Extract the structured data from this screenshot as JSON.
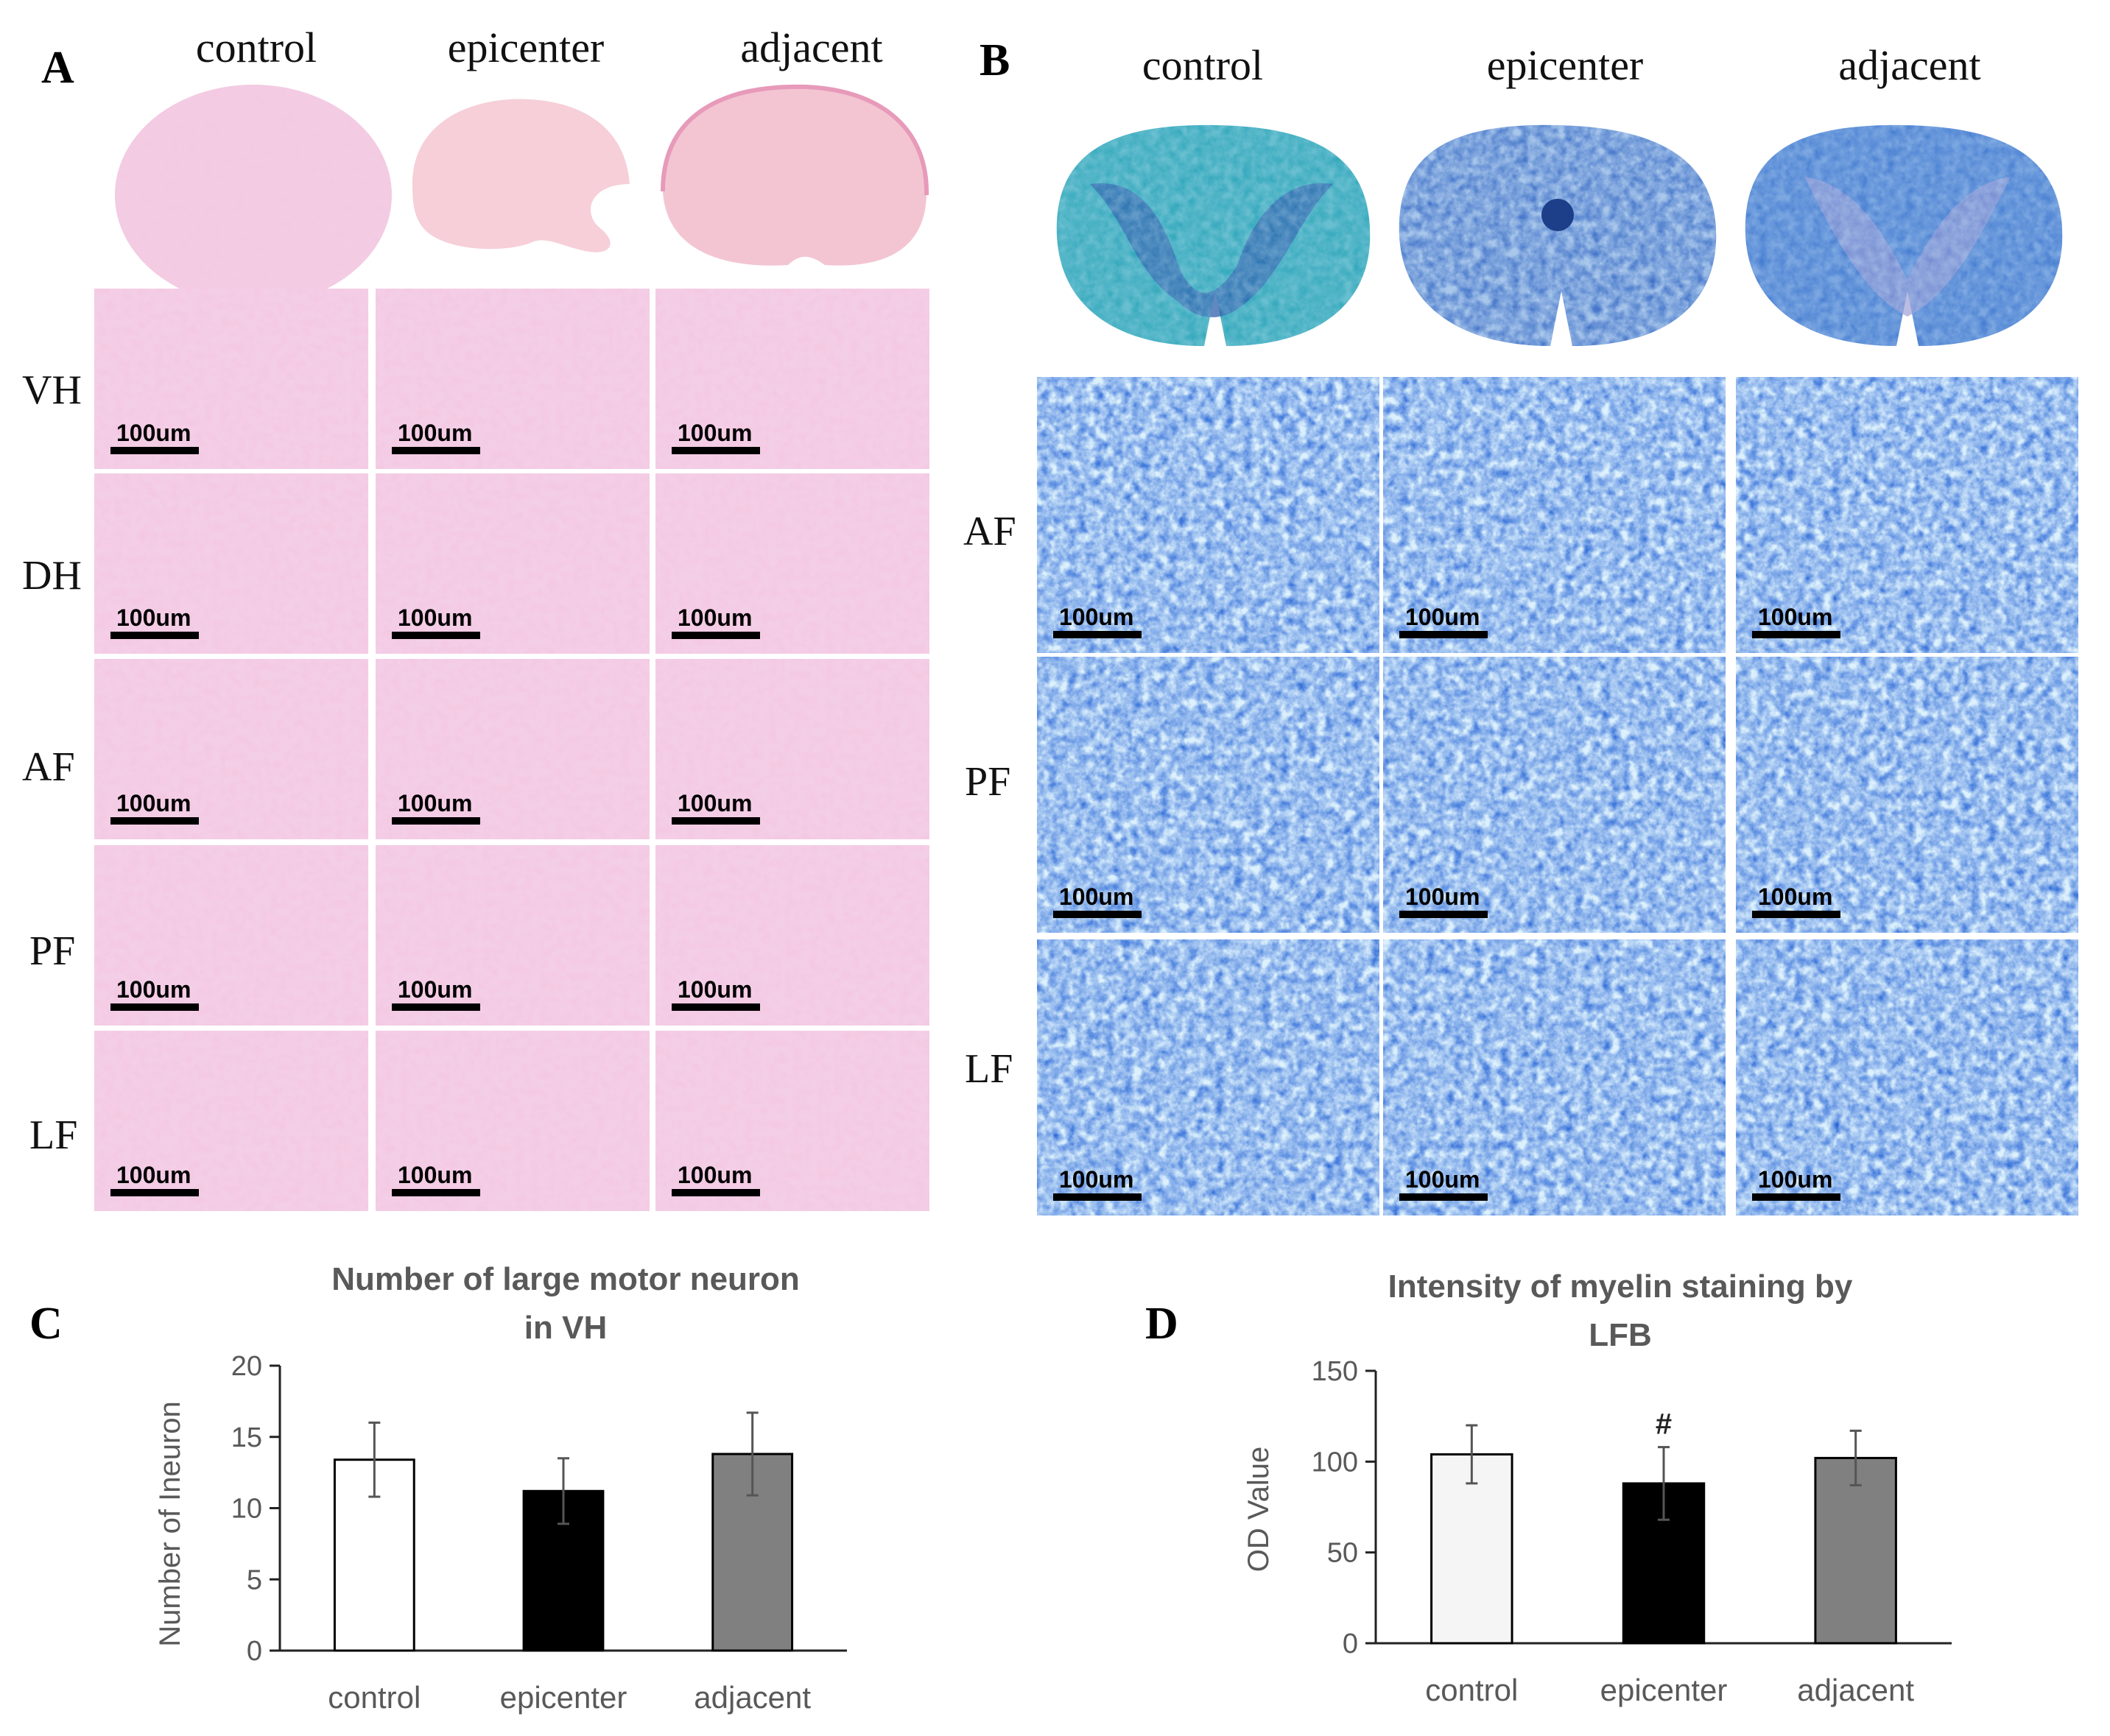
{
  "panel_a": {
    "letter": "A",
    "columns": [
      "control",
      "epicenter",
      "adjacent"
    ],
    "rows": [
      "VH",
      "DH",
      "AF",
      "PF",
      "LF"
    ],
    "scale_label": "100um",
    "stain_color": "#e9a5cc"
  },
  "panel_b": {
    "letter": "B",
    "columns": [
      "control",
      "epicenter",
      "adjacent"
    ],
    "rows": [
      "AF",
      "PF",
      "LF"
    ],
    "scale_label": "100um",
    "stain_color": "#2f6fd0"
  },
  "chart_data": [
    {
      "panel": "C",
      "type": "bar",
      "title_lines": [
        "Number of large motor neuron",
        "in VH"
      ],
      "xlabel": "",
      "ylabel": "Number of Ineuron",
      "categories": [
        "control",
        "epicenter",
        "adjacent"
      ],
      "values": [
        13.4,
        11.2,
        13.8
      ],
      "errors": [
        2.6,
        2.3,
        2.9
      ],
      "bar_colors": [
        "#ffffff",
        "#000000",
        "#808080"
      ],
      "ylim": [
        0,
        20
      ],
      "yticks": [
        0,
        5,
        10,
        15,
        20
      ],
      "annotations": []
    },
    {
      "panel": "D",
      "type": "bar",
      "title_lines": [
        "Intensity of myelin staining by",
        "LFB"
      ],
      "xlabel": "",
      "ylabel": "OD Value",
      "categories": [
        "control",
        "epicenter",
        "adjacent"
      ],
      "values": [
        104,
        88,
        102
      ],
      "errors": [
        16,
        20,
        15
      ],
      "bar_colors": [
        "#f5f5f5",
        "#000000",
        "#808080"
      ],
      "ylim": [
        0,
        150
      ],
      "yticks": [
        0,
        50,
        100,
        150
      ],
      "annotations": [
        {
          "category": "epicenter",
          "text": "#"
        }
      ]
    }
  ]
}
